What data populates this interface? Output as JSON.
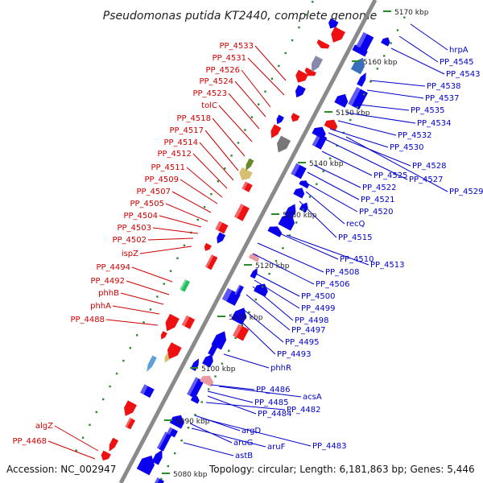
{
  "title": "Pseudomonas putida KT2440, complete genome",
  "footer": {
    "accession": "Accession: NC_002947",
    "summary": "Topology: circular; Length: 6,181,863 bp; Genes: 5,446"
  },
  "colors": {
    "left_label": "#cc0000",
    "right_label": "#0000cc",
    "axis": "#8a8a8a",
    "tick": "#2a8a2a"
  },
  "kbp_marks": [
    "5080 kbp",
    "5090 kbp",
    "5100 kbp",
    "5110 kbp",
    "5120 kbp",
    "5130 kbp",
    "5140 kbp",
    "5150 kbp",
    "5160 kbp",
    "5170 kbp"
  ],
  "left_labels": [
    "PP_4533",
    "PP_4531",
    "PP_4526",
    "PP_4524",
    "PP_4523",
    "tolC",
    "PP_4518",
    "PP_4517",
    "PP_4514",
    "PP_4512",
    "PP_4511",
    "PP_4509",
    "PP_4507",
    "PP_4505",
    "PP_4504",
    "PP_4503",
    "PP_4502",
    "ispZ",
    "PP_4494",
    "PP_4492",
    "phhB",
    "phhA",
    "PP_4488",
    "algZ",
    "PP_4468"
  ],
  "right_labels": [
    "hrpA",
    "PP_4545",
    "PP_4543",
    "PP_4538",
    "PP_4537",
    "PP_4535",
    "PP_4534",
    "PP_4532",
    "PP_4530",
    "PP_4528",
    "PP_4527",
    "PP_4529",
    "PP_4525",
    "PP_4522",
    "PP_4521",
    "PP_4520",
    "recQ",
    "PP_4515",
    "PP_4510",
    "PP_4513",
    "PP_4508",
    "PP_4506",
    "PP_4500",
    "PP_4499",
    "PP_4498",
    "PP_4497",
    "PP_4495",
    "PP_4493",
    "phhR",
    "PP_4486",
    "acsA",
    "PP_4485",
    "PP_4484",
    "PP_4482",
    "argD",
    "PP_4483",
    "aruG",
    "aruF",
    "astB"
  ]
}
